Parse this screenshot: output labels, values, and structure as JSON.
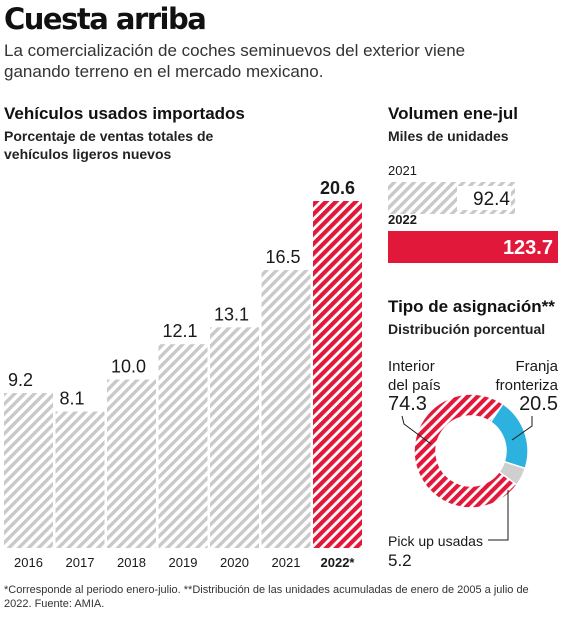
{
  "header": {
    "title": "Cuesta arriba",
    "subtitle": "La comercialización de coches seminuevos del exterior viene ganando terreno en el mercado mexicano."
  },
  "footnote": "*Corresponde al periodo enero-julio. **Distribución de las unidades acumuladas de enero de 2005 a julio de 2022. Fuente: AMIA.",
  "colors": {
    "gray_hatch": "#c9c9c9",
    "red": "#e2183a",
    "blue": "#2db2e0",
    "light_gray": "#cfcfcf"
  },
  "chart_data": [
    {
      "type": "bar",
      "title": "Vehículos usados importados",
      "subtitle": "Porcentaje de ventas totales de vehículos ligeros nuevos",
      "categories": [
        "2016",
        "2017",
        "2018",
        "2019",
        "2020",
        "2021",
        "2022*"
      ],
      "values": [
        9.2,
        8.1,
        10.0,
        12.1,
        13.1,
        16.5,
        20.6
      ],
      "value_labels": [
        "9.2",
        "8.1",
        "10.0",
        "12.1",
        "13.1",
        "16.5",
        "20.6"
      ],
      "highlight_index": 6,
      "ylim": [
        0,
        20.6
      ],
      "grid": false
    },
    {
      "type": "bar",
      "orientation": "horizontal",
      "title": "Volumen ene-jul",
      "subtitle": "Miles de unidades",
      "categories": [
        "2021",
        "2022"
      ],
      "values": [
        92.4,
        123.7
      ],
      "value_labels": [
        "92.4",
        "123.7"
      ],
      "highlight_index": 1
    },
    {
      "type": "pie",
      "style": "donut",
      "title": "Tipo de asignación**",
      "subtitle": "Distribución porcentual",
      "slices": [
        {
          "name": "Interior del país",
          "value": 74.3,
          "label": "74.3",
          "color": "#e2183a"
        },
        {
          "name": "Franja fronteriza",
          "value": 20.5,
          "label": "20.5",
          "color": "#2db2e0"
        },
        {
          "name": "Pick up usadas",
          "value": 5.2,
          "label": "5.2",
          "color": "#cfcfcf"
        }
      ]
    }
  ]
}
